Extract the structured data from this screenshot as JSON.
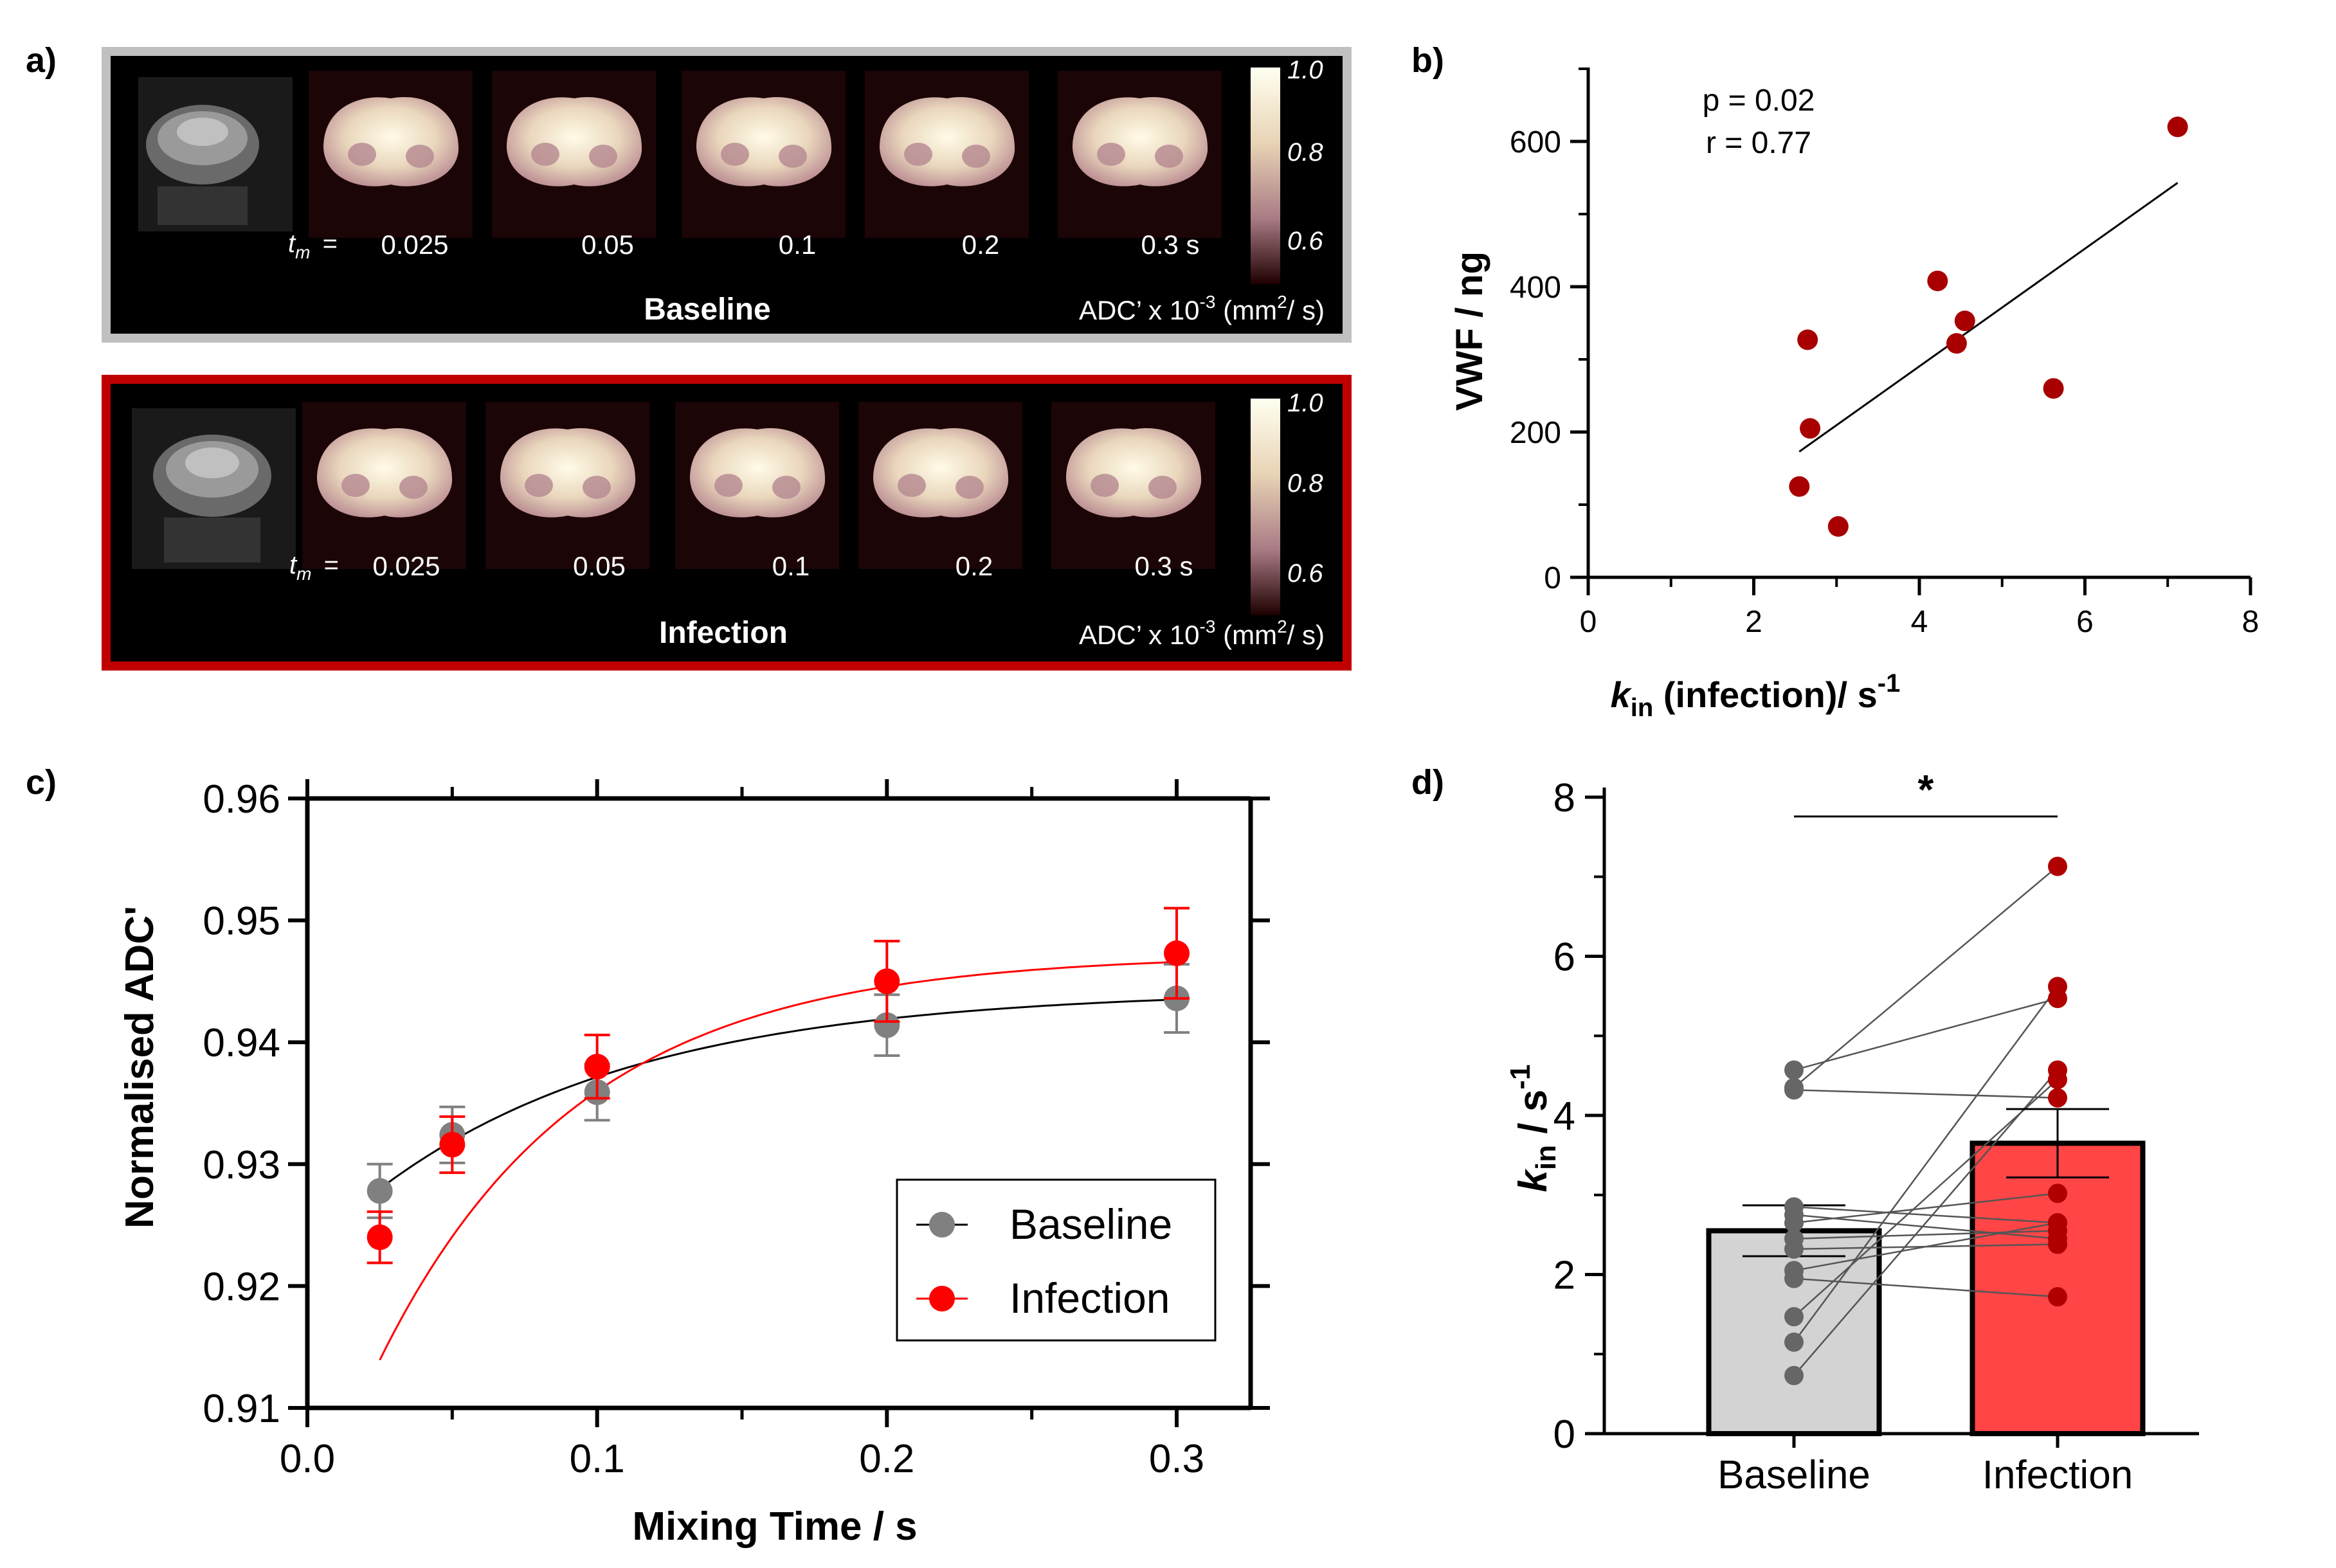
{
  "colors": {
    "baseline_panel_border": "#c0c0c0",
    "infection_panel_border": "#c00000",
    "baseline": "#808080",
    "infection": "#ff0000",
    "scatter_point": "#a80000",
    "bar_baseline": "#d3d3d3",
    "bar_infection": "#ff4545",
    "point_baseline": "#666666",
    "point_infection": "#b00000"
  },
  "panel_a": {
    "label": "a)",
    "colorbar_ticks": [
      "1.0",
      "0.8",
      "0.6"
    ],
    "tm_symbol": "t",
    "tm_subscript": "m",
    "tm_equals": " =",
    "rows": [
      {
        "name": "Baseline",
        "times": [
          "0.025",
          "0.05",
          "0.1",
          "0.2",
          "0.3 s"
        ],
        "adc_prefix": "ADC’ x 10",
        "adc_exp": "-3",
        "adc_unit": " (mm",
        "adc_unit_exp": "2",
        "adc_unit_end": "/ s)"
      },
      {
        "name": "Infection",
        "times": [
          "0.025",
          "0.05",
          "0.1",
          "0.2",
          "0.3 s"
        ],
        "adc_prefix": "ADC’ x 10",
        "adc_exp": "-3",
        "adc_unit": " (mm",
        "adc_unit_exp": "2",
        "adc_unit_end": "/ s)"
      }
    ]
  },
  "chart_data": [
    {
      "panel": "b)",
      "type": "scatter",
      "xlabel_k": "k",
      "xlabel_sub": "in",
      "xlabel_rest": " (infection)/ s",
      "xlabel_exp": "-1",
      "ylabel": "VWF / ng",
      "xlim": [
        0,
        8
      ],
      "ylim": [
        0,
        700
      ],
      "xticks": [
        0,
        2,
        4,
        6,
        8
      ],
      "yticks": [
        0,
        200,
        400,
        600
      ],
      "annotations": [
        "p = 0.02",
        "r = 0.77"
      ],
      "points": [
        {
          "x": 2.55,
          "y": 125
        },
        {
          "x": 2.65,
          "y": 327
        },
        {
          "x": 2.68,
          "y": 205
        },
        {
          "x": 3.02,
          "y": 70
        },
        {
          "x": 4.22,
          "y": 408
        },
        {
          "x": 4.45,
          "y": 322
        },
        {
          "x": 4.55,
          "y": 353
        },
        {
          "x": 5.62,
          "y": 260
        },
        {
          "x": 7.12,
          "y": 620
        }
      ],
      "fit_line": {
        "x": [
          2.55,
          7.12
        ],
        "y": [
          173,
          543
        ]
      }
    },
    {
      "panel": "c)",
      "type": "line",
      "xlabel": "Mixing Time / s",
      "ylabel": "Normalised ADC'",
      "xlim": [
        0,
        0.325
      ],
      "ylim": [
        0.91,
        0.96
      ],
      "xticks": [
        "0.0",
        "0.1",
        "0.2",
        "0.3"
      ],
      "yticks": [
        "0.91",
        "0.92",
        "0.93",
        "0.94",
        "0.95",
        "0.96"
      ],
      "x": [
        0.025,
        0.05,
        0.1,
        0.2,
        0.3
      ],
      "series": [
        {
          "name": "Baseline",
          "values": [
            0.9278,
            0.9324,
            0.9359,
            0.9414,
            0.9436
          ],
          "errors": [
            0.0022,
            0.0023,
            0.0023,
            0.0025,
            0.0028
          ],
          "fit": {
            "plateau": 0.9443,
            "amplitude": 0.0215,
            "rate": 11.0
          }
        },
        {
          "name": "Infection",
          "values": [
            0.924,
            0.9316,
            0.938,
            0.945,
            0.9473
          ],
          "errors": [
            0.0021,
            0.0023,
            0.0026,
            0.0033,
            0.0037
          ],
          "fit": {
            "plateau": 0.9472,
            "amplitude": 0.0478,
            "rate": 14.5
          }
        }
      ],
      "legend": [
        "Baseline",
        "Infection"
      ],
      "legend_position": "bottom-right"
    },
    {
      "panel": "d)",
      "type": "bar",
      "ylabel_k": "k",
      "ylabel_sub": "in",
      "ylabel_rest": " / s",
      "ylabel_exp": "-1",
      "categories": [
        "Baseline",
        "Infection"
      ],
      "values": [
        2.55,
        3.65
      ],
      "errors": [
        0.32,
        0.43
      ],
      "ylim": [
        0,
        8
      ],
      "yticks": [
        0,
        2,
        4,
        6,
        8
      ],
      "significance": "*",
      "paired": [
        [
          4.57,
          5.47
        ],
        [
          4.35,
          7.13
        ],
        [
          4.32,
          4.22
        ],
        [
          2.85,
          2.65
        ],
        [
          2.75,
          2.45
        ],
        [
          2.65,
          3.02
        ],
        [
          2.45,
          2.55
        ],
        [
          2.32,
          2.38
        ],
        [
          2.05,
          2.65
        ],
        [
          1.95,
          1.72
        ],
        [
          1.47,
          4.45
        ],
        [
          1.15,
          5.62
        ],
        [
          0.73,
          4.57
        ]
      ]
    }
  ]
}
